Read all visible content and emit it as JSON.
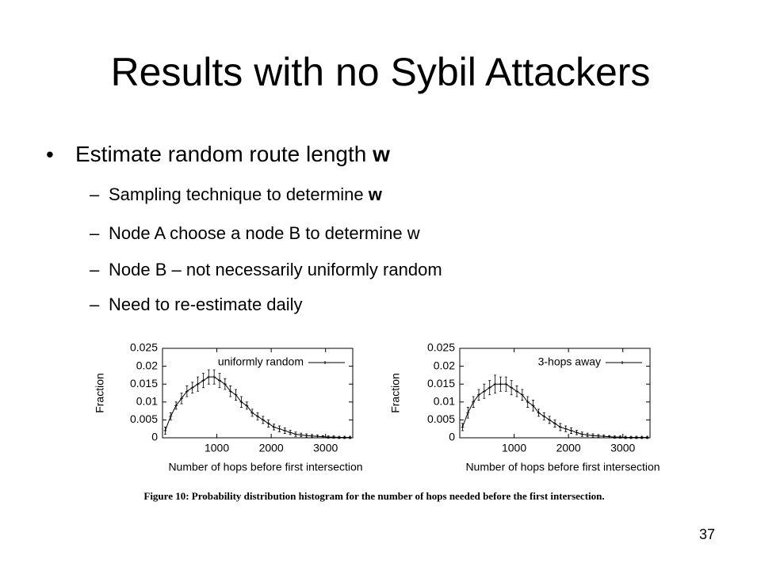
{
  "slide": {
    "title": "Results with no Sybil Attackers",
    "bullets": [
      {
        "text": "Estimate random route length ",
        "bold": "w",
        "items": [
          {
            "text": "Sampling technique to determine ",
            "bold": "w"
          },
          {
            "text": "Node A choose a node B to determine w"
          },
          {
            "text": "Node B – not necessarily uniformly random"
          },
          {
            "text": "Need to re-estimate daily"
          }
        ]
      }
    ],
    "caption": "Figure 10:  Probability distribution histogram for the number of hops needed before the first intersection.",
    "page_number": "37"
  },
  "chart_data": [
    {
      "type": "line",
      "x_label": "Number of hops before first intersection",
      "y_label": "Fraction",
      "xlim": [
        0,
        3500
      ],
      "xticks": [
        1000,
        2000,
        3000
      ],
      "ylim": [
        0,
        0.025
      ],
      "yticks": [
        0,
        0.005,
        0.01,
        0.015,
        0.02,
        0.025
      ],
      "legend": "top-right",
      "x": [
        50,
        150,
        250,
        350,
        450,
        550,
        650,
        750,
        850,
        950,
        1050,
        1150,
        1250,
        1350,
        1450,
        1550,
        1650,
        1750,
        1850,
        1950,
        2050,
        2150,
        2250,
        2350,
        2450,
        2550,
        2650,
        2750,
        2850,
        2950,
        3050,
        3150,
        3250,
        3350,
        3450
      ],
      "series": [
        {
          "name": "uniformly random",
          "color": "#000000",
          "values": [
            0.002,
            0.006,
            0.009,
            0.011,
            0.013,
            0.014,
            0.015,
            0.016,
            0.017,
            0.017,
            0.016,
            0.015,
            0.013,
            0.012,
            0.01,
            0.009,
            0.007,
            0.006,
            0.005,
            0.004,
            0.003,
            0.0025,
            0.002,
            0.0015,
            0.001,
            0.0008,
            0.0006,
            0.0005,
            0.0004,
            0.0003,
            0.0002,
            0.0002,
            0.0001,
            0.0001,
            0.0001
          ],
          "errors": [
            0.001,
            0.001,
            0.001,
            0.0015,
            0.0015,
            0.0015,
            0.002,
            0.002,
            0.002,
            0.002,
            0.002,
            0.0015,
            0.0015,
            0.0015,
            0.0015,
            0.001,
            0.001,
            0.001,
            0.001,
            0.001,
            0.0008,
            0.0008,
            0.0008,
            0.0006,
            0.0006,
            0.0005,
            0.0005,
            0.0004,
            0.0004,
            0.0003,
            0.0003,
            0.0003,
            0.0003,
            0.0003,
            0.0003
          ]
        }
      ]
    },
    {
      "type": "line",
      "x_label": "Number of hops before first intersection",
      "y_label": "Fraction",
      "xlim": [
        0,
        3500
      ],
      "xticks": [
        1000,
        2000,
        3000
      ],
      "ylim": [
        0,
        0.025
      ],
      "yticks": [
        0,
        0.005,
        0.01,
        0.015,
        0.02,
        0.025
      ],
      "legend": "top-right",
      "x": [
        50,
        150,
        250,
        350,
        450,
        550,
        650,
        750,
        850,
        950,
        1050,
        1150,
        1250,
        1350,
        1450,
        1550,
        1650,
        1750,
        1850,
        1950,
        2050,
        2150,
        2250,
        2350,
        2450,
        2550,
        2650,
        2750,
        2850,
        2950,
        3050,
        3150,
        3250,
        3350,
        3450
      ],
      "series": [
        {
          "name": "3-hops away",
          "color": "#000000",
          "values": [
            0.003,
            0.007,
            0.01,
            0.012,
            0.013,
            0.014,
            0.015,
            0.015,
            0.015,
            0.014,
            0.013,
            0.012,
            0.01,
            0.009,
            0.007,
            0.006,
            0.005,
            0.004,
            0.003,
            0.0025,
            0.002,
            0.0015,
            0.001,
            0.0008,
            0.0006,
            0.0005,
            0.0004,
            0.0003,
            0.0002,
            0.0002,
            0.0001,
            0.0001,
            0.0001,
            0.0001,
            0.0001
          ],
          "errors": [
            0.001,
            0.0015,
            0.0015,
            0.0015,
            0.002,
            0.002,
            0.0025,
            0.002,
            0.002,
            0.002,
            0.0015,
            0.0015,
            0.0015,
            0.0015,
            0.001,
            0.001,
            0.001,
            0.001,
            0.001,
            0.0008,
            0.0008,
            0.0006,
            0.0006,
            0.0005,
            0.0005,
            0.0004,
            0.0004,
            0.0003,
            0.0003,
            0.0003,
            0.0003,
            0.0003,
            0.0003,
            0.0003,
            0.0003
          ]
        }
      ]
    }
  ]
}
